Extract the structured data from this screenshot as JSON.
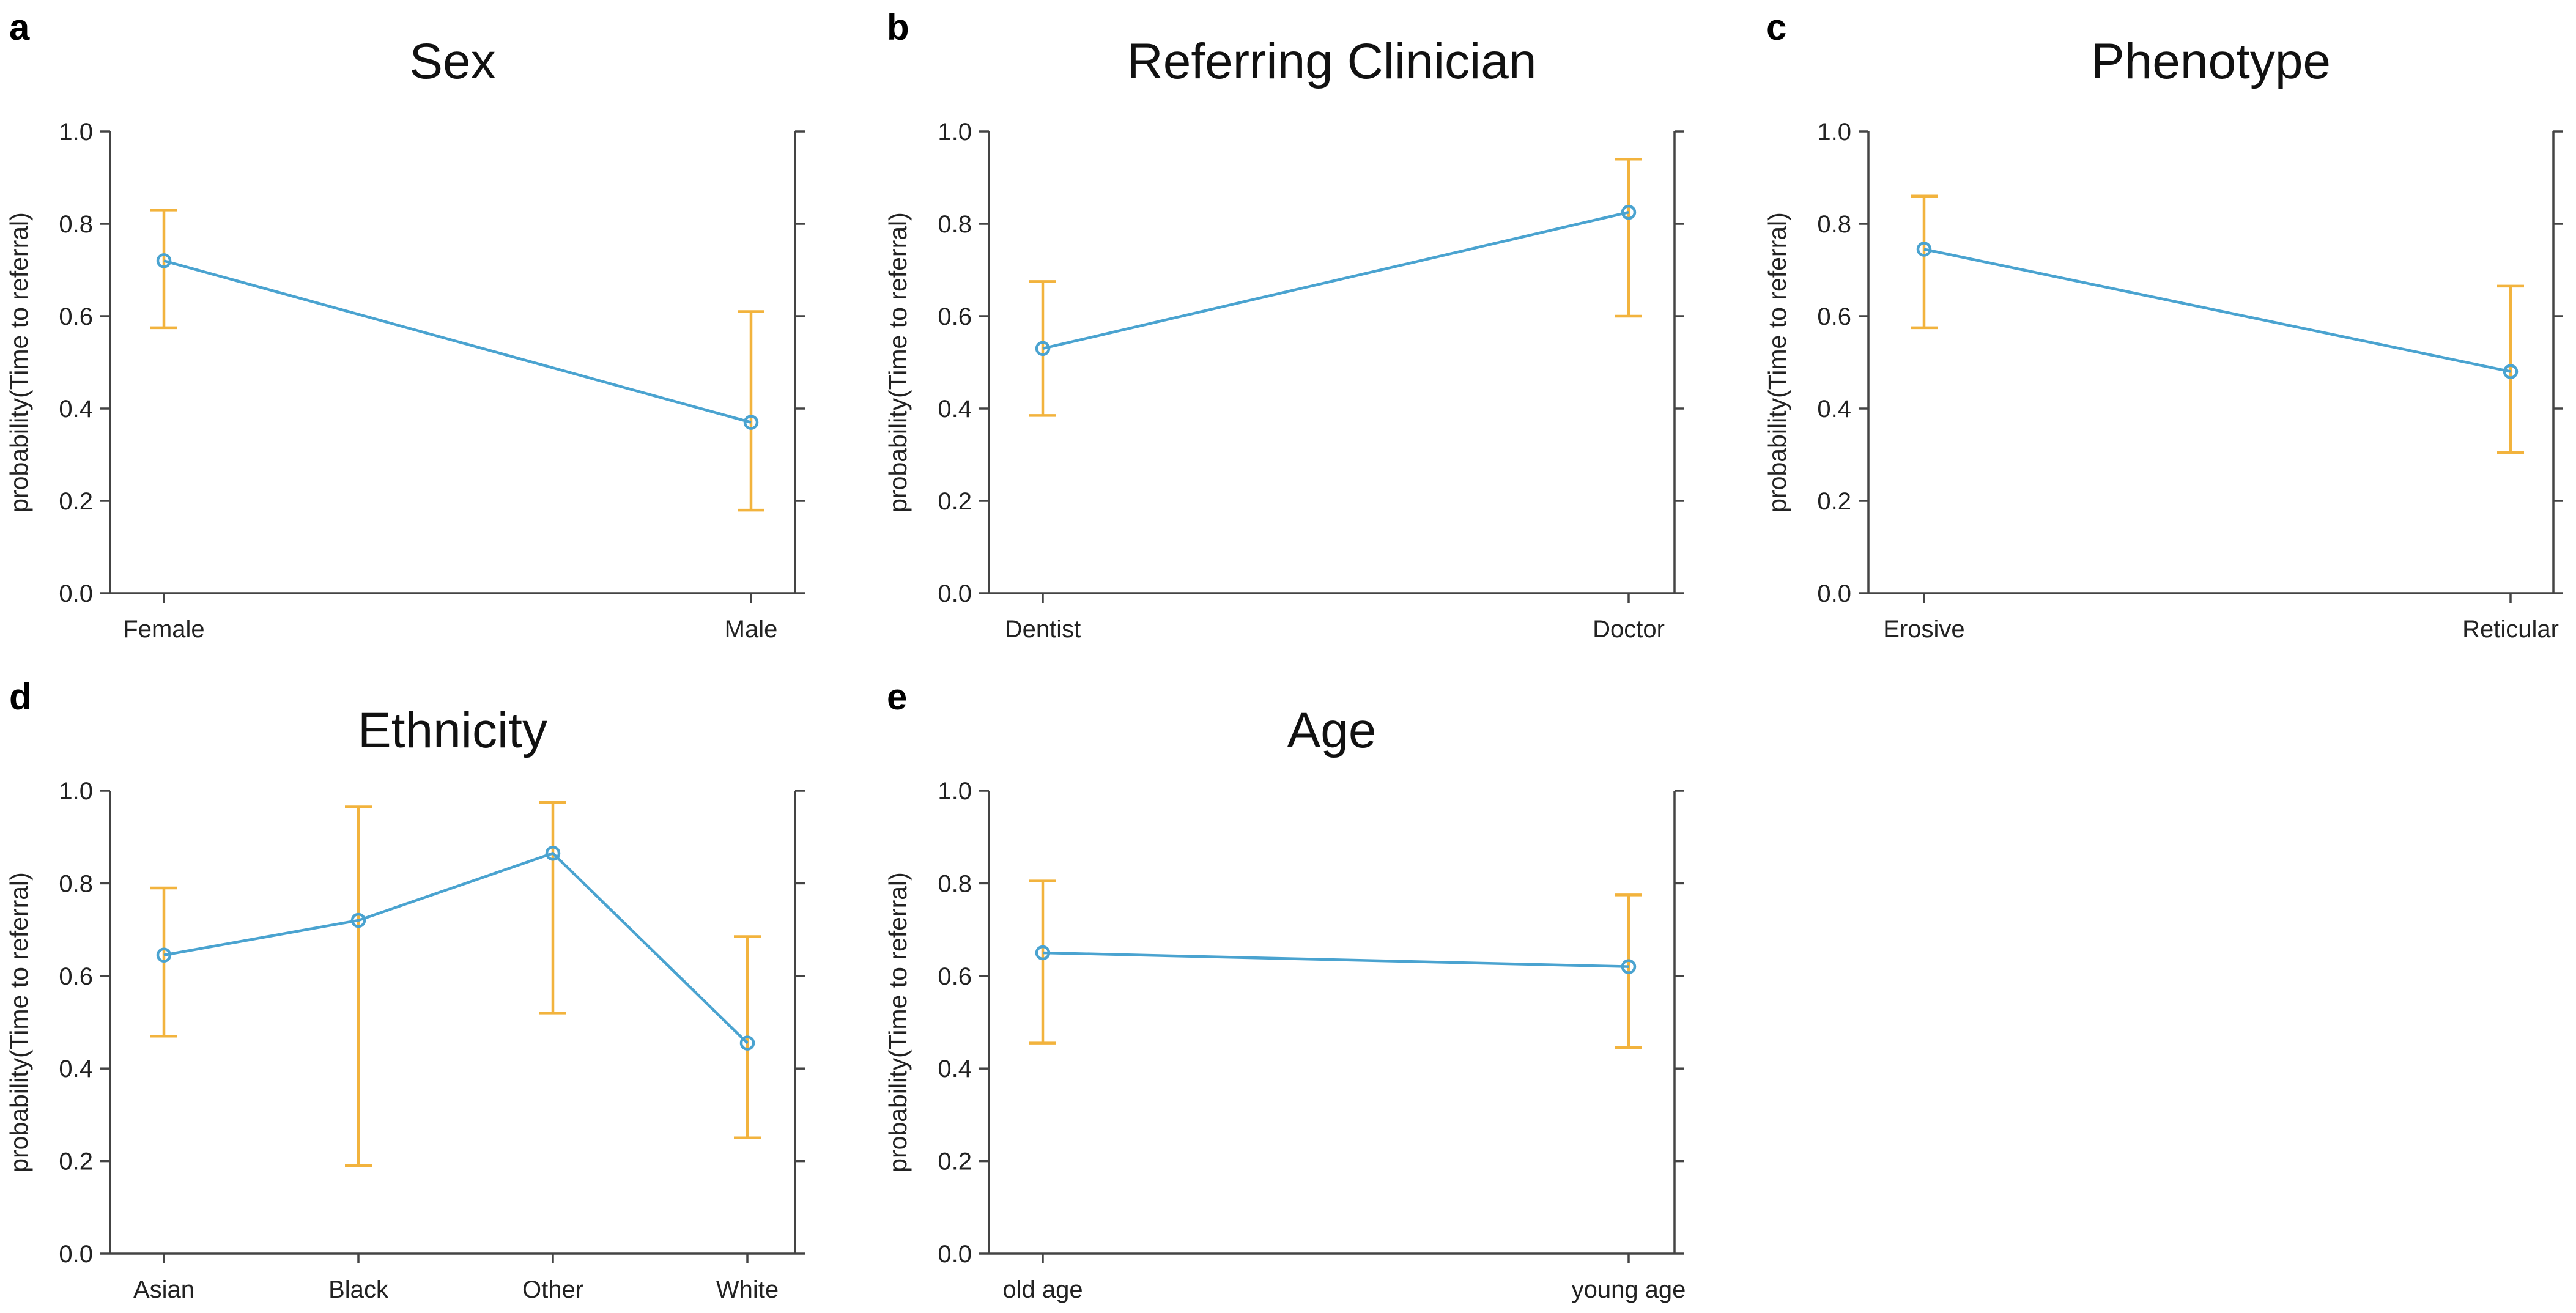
{
  "colors": {
    "line": "#4aa3d0",
    "error": "#f2b33d",
    "axis": "#444444",
    "text": "#222222"
  },
  "chart_data": [
    {
      "panel": "a",
      "type": "line",
      "title": "Sex",
      "xlabel": "",
      "ylabel": "probability(Time to referral)",
      "ylim": [
        0,
        1
      ],
      "yticks": [
        "0.0",
        "0.2",
        "0.4",
        "0.6",
        "0.8",
        "1.0"
      ],
      "categories": [
        "Female",
        "Male"
      ],
      "values": [
        0.72,
        0.37
      ],
      "lower": [
        0.575,
        0.18
      ],
      "upper": [
        0.83,
        0.61
      ]
    },
    {
      "panel": "b",
      "type": "line",
      "title": "Referring Clinician",
      "xlabel": "",
      "ylabel": "probability(Time to referral)",
      "ylim": [
        0,
        1
      ],
      "yticks": [
        "0.0",
        "0.2",
        "0.4",
        "0.6",
        "0.8",
        "1.0"
      ],
      "categories": [
        "Dentist",
        "Doctor"
      ],
      "values": [
        0.53,
        0.825
      ],
      "lower": [
        0.385,
        0.6
      ],
      "upper": [
        0.675,
        0.94
      ]
    },
    {
      "panel": "c",
      "type": "line",
      "title": "Phenotype",
      "xlabel": "",
      "ylabel": "probability(Time to referral)",
      "ylim": [
        0,
        1
      ],
      "yticks": [
        "0.0",
        "0.2",
        "0.4",
        "0.6",
        "0.8",
        "1.0"
      ],
      "categories": [
        "Erosive",
        "Reticular"
      ],
      "values": [
        0.745,
        0.48
      ],
      "lower": [
        0.575,
        0.305
      ],
      "upper": [
        0.86,
        0.665
      ]
    },
    {
      "panel": "d",
      "type": "line",
      "title": "Ethnicity",
      "xlabel": "",
      "ylabel": "probability(Time to referral)",
      "ylim": [
        0,
        1
      ],
      "yticks": [
        "0.0",
        "0.2",
        "0.4",
        "0.6",
        "0.8",
        "1.0"
      ],
      "categories": [
        "Asian",
        "Black",
        "Other",
        "White"
      ],
      "values": [
        0.645,
        0.72,
        0.865,
        0.455
      ],
      "lower": [
        0.47,
        0.19,
        0.52,
        0.25
      ],
      "upper": [
        0.79,
        0.965,
        0.975,
        0.685
      ]
    },
    {
      "panel": "e",
      "type": "line",
      "title": "Age",
      "xlabel": "",
      "ylabel": "probability(Time to referral)",
      "ylim": [
        0,
        1
      ],
      "yticks": [
        "0.0",
        "0.2",
        "0.4",
        "0.6",
        "0.8",
        "1.0"
      ],
      "categories": [
        "old age",
        "young age"
      ],
      "values": [
        0.65,
        0.62
      ],
      "lower": [
        0.455,
        0.445
      ],
      "upper": [
        0.805,
        0.775
      ]
    }
  ]
}
